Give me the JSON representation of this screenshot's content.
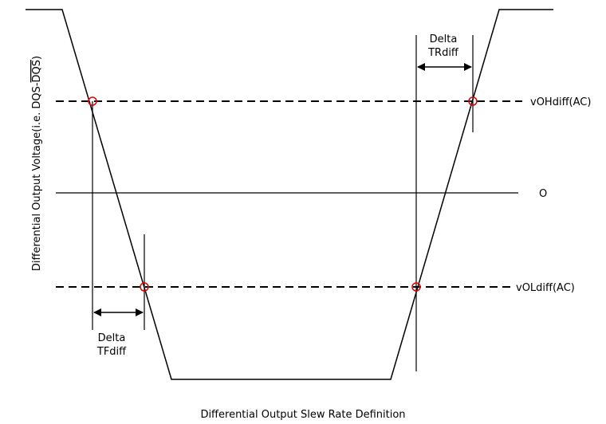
{
  "diagram": {
    "caption": "Differential Output Slew Rate Definition",
    "y_axis_label_prefix": "Differential Output Voltage(i.e. ",
    "y_axis_label_dqs": "DQS-",
    "y_axis_label_dqs_bar": "DQS",
    "y_axis_label_suffix": ")",
    "levels": {
      "high": "vOHdiff(AC)",
      "zero": "O",
      "low": "vOLdiff(AC)"
    },
    "delta_fall": {
      "line1": "Delta",
      "line2": "TFdiff"
    },
    "delta_rise": {
      "line1": "Delta",
      "line2": "TRdiff"
    },
    "colors": {
      "line": "#000000",
      "crossing_marker": "#e00000",
      "background": "#ffffff"
    }
  }
}
